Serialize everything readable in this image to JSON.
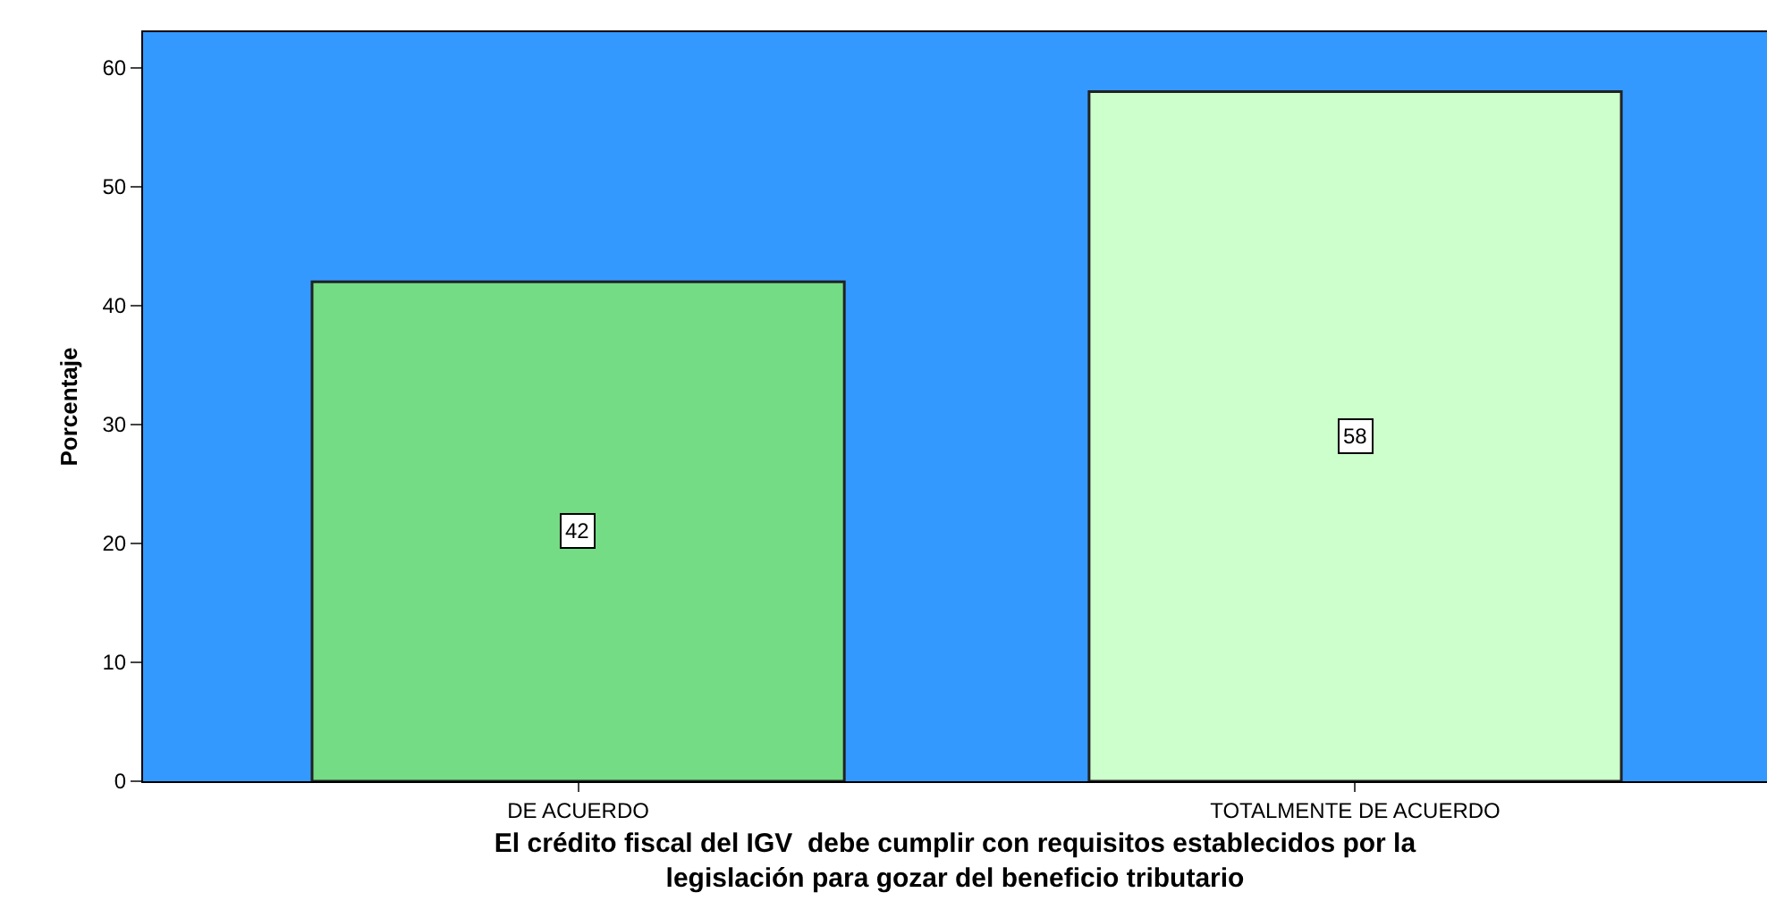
{
  "chart_data": {
    "type": "bar",
    "xlabel": "El crédito fiscal del IGV  debe cumplir con requisitos establecidos por la legislación para gozar del beneficio tributario",
    "ylabel": "Porcentaje",
    "categories": [
      "DE ACUERDO",
      "TOTALMENTE DE ACUERDO"
    ],
    "values": [
      42,
      58
    ],
    "colors": [
      "#73dc84",
      "#ccffcc"
    ],
    "ylim": [
      0,
      63
    ],
    "yticks": [
      0,
      10,
      20,
      30,
      40,
      50,
      60
    ],
    "grid": false,
    "legend": false,
    "data_labels": true
  }
}
